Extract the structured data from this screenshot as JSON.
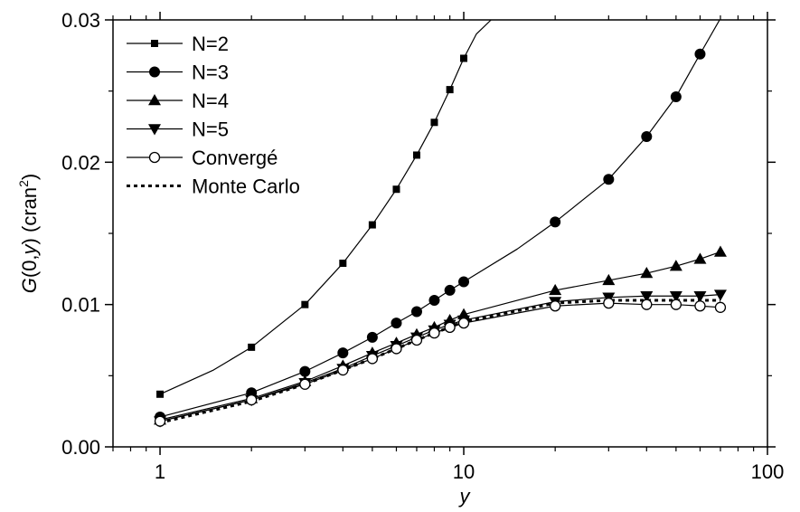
{
  "chart_data": {
    "type": "line",
    "xscale": "log",
    "xlim": [
      0.7,
      100
    ],
    "ylim": [
      0,
      0.03
    ],
    "xticks": [
      1,
      10,
      100
    ],
    "xtick_labels": [
      "1",
      "10",
      "100"
    ],
    "yticks": [
      0,
      0.01,
      0.02,
      0.03
    ],
    "ytick_labels": [
      "0.00",
      "0.01",
      "0.02",
      "0.03"
    ],
    "xlabel": "y",
    "ylabel": "G(0,y) (cran²)",
    "ylabel_parts": {
      "g": "G",
      "open": "(0,",
      "var": "y",
      "close": ") (cran",
      "sup": "2",
      "end": ")"
    },
    "legend_position": "top-left",
    "grid": false,
    "series": [
      {
        "name": "N=2",
        "marker": "square",
        "color": "#000000",
        "x": [
          1,
          2,
          3,
          4,
          5,
          6,
          7,
          8,
          9,
          10
        ],
        "y": [
          0.0037,
          0.007,
          0.01,
          0.0129,
          0.0156,
          0.0181,
          0.0205,
          0.0228,
          0.0251,
          0.0273
        ],
        "curve_x": [
          1,
          1.5,
          2,
          3,
          4,
          5,
          6,
          7,
          8,
          9,
          10,
          11,
          12.3
        ],
        "curve_y": [
          0.0037,
          0.0054,
          0.007,
          0.01,
          0.0129,
          0.0156,
          0.0181,
          0.0205,
          0.0228,
          0.0251,
          0.0273,
          0.029,
          0.03
        ]
      },
      {
        "name": "N=3",
        "marker": "circle-filled",
        "color": "#000000",
        "x": [
          1,
          2,
          3,
          4,
          5,
          6,
          7,
          8,
          9,
          10,
          20,
          30,
          40,
          50,
          60
        ],
        "y": [
          0.0021,
          0.0038,
          0.0053,
          0.0066,
          0.0077,
          0.0087,
          0.0095,
          0.0103,
          0.011,
          0.0116,
          0.0158,
          0.0188,
          0.0218,
          0.0246,
          0.0276
        ],
        "curve_x": [
          1,
          2,
          3,
          4,
          5,
          6,
          7,
          8,
          9,
          10,
          15,
          20,
          30,
          40,
          50,
          60,
          70
        ],
        "curve_y": [
          0.0021,
          0.0038,
          0.0053,
          0.0066,
          0.0077,
          0.0087,
          0.0095,
          0.0103,
          0.011,
          0.0116,
          0.0139,
          0.0158,
          0.0188,
          0.0218,
          0.0246,
          0.0276,
          0.0301
        ]
      },
      {
        "name": "N=4",
        "marker": "triangle-up",
        "color": "#000000",
        "x": [
          1,
          2,
          3,
          4,
          5,
          6,
          7,
          8,
          9,
          10,
          20,
          30,
          40,
          50,
          60,
          70
        ],
        "y": [
          0.0019,
          0.0034,
          0.0046,
          0.0057,
          0.0066,
          0.0073,
          0.0079,
          0.0084,
          0.0089,
          0.0093,
          0.011,
          0.0117,
          0.0122,
          0.0127,
          0.0132,
          0.0137
        ],
        "curve_x": [
          1,
          2,
          3,
          4,
          5,
          6,
          7,
          8,
          9,
          10,
          20,
          30,
          40,
          50,
          60,
          70
        ],
        "curve_y": [
          0.0019,
          0.0034,
          0.0046,
          0.0057,
          0.0066,
          0.0073,
          0.0079,
          0.0084,
          0.0089,
          0.0093,
          0.011,
          0.0117,
          0.0122,
          0.0127,
          0.0132,
          0.0137
        ]
      },
      {
        "name": "N=5",
        "marker": "triangle-down",
        "color": "#000000",
        "x": [
          1,
          2,
          3,
          4,
          5,
          6,
          7,
          8,
          9,
          10,
          20,
          30,
          40,
          50,
          60,
          70
        ],
        "y": [
          0.0018,
          0.0033,
          0.0045,
          0.0055,
          0.0064,
          0.0071,
          0.0077,
          0.0082,
          0.0086,
          0.0089,
          0.0102,
          0.0105,
          0.0106,
          0.0106,
          0.0106,
          0.0107
        ],
        "curve_x": [
          1,
          2,
          3,
          4,
          5,
          6,
          7,
          8,
          9,
          10,
          20,
          30,
          40,
          50,
          60,
          70
        ],
        "curve_y": [
          0.0018,
          0.0033,
          0.0045,
          0.0055,
          0.0064,
          0.0071,
          0.0077,
          0.0082,
          0.0086,
          0.0089,
          0.0102,
          0.0105,
          0.0106,
          0.0106,
          0.0106,
          0.0107
        ]
      },
      {
        "name": "Convergé",
        "marker": "circle-open",
        "color": "#000000",
        "x": [
          1,
          2,
          3,
          4,
          5,
          6,
          7,
          8,
          9,
          10,
          20,
          30,
          40,
          50,
          60,
          70
        ],
        "y": [
          0.0018,
          0.0033,
          0.0044,
          0.0054,
          0.0062,
          0.0069,
          0.0075,
          0.008,
          0.0084,
          0.0087,
          0.0099,
          0.0101,
          0.01,
          0.01,
          0.0099,
          0.0098
        ],
        "curve_x": [
          1,
          2,
          3,
          4,
          5,
          6,
          7,
          8,
          9,
          10,
          20,
          30,
          40,
          50,
          60,
          70
        ],
        "curve_y": [
          0.0018,
          0.0033,
          0.0044,
          0.0054,
          0.0062,
          0.0069,
          0.0075,
          0.008,
          0.0084,
          0.0087,
          0.0099,
          0.0101,
          0.01,
          0.01,
          0.0099,
          0.0098
        ]
      },
      {
        "name": "Monte Carlo",
        "marker": "none",
        "line_style": "dotted",
        "color": "#000000",
        "x": [
          1,
          2,
          3,
          4,
          5,
          6,
          7,
          8,
          9,
          10,
          20,
          30,
          40,
          50,
          60,
          70
        ],
        "y": [
          0.0017,
          0.0032,
          0.0044,
          0.0054,
          0.0062,
          0.0069,
          0.0075,
          0.008,
          0.0084,
          0.0088,
          0.0101,
          0.0103,
          0.0103,
          0.0103,
          0.0103,
          0.0103
        ],
        "curve_x": [
          1,
          2,
          3,
          4,
          5,
          6,
          7,
          8,
          9,
          10,
          20,
          30,
          40,
          50,
          60,
          70
        ],
        "curve_y": [
          0.0017,
          0.0032,
          0.0044,
          0.0054,
          0.0062,
          0.0069,
          0.0075,
          0.008,
          0.0084,
          0.0088,
          0.0101,
          0.0103,
          0.0103,
          0.0103,
          0.0103,
          0.0103
        ]
      }
    ]
  }
}
